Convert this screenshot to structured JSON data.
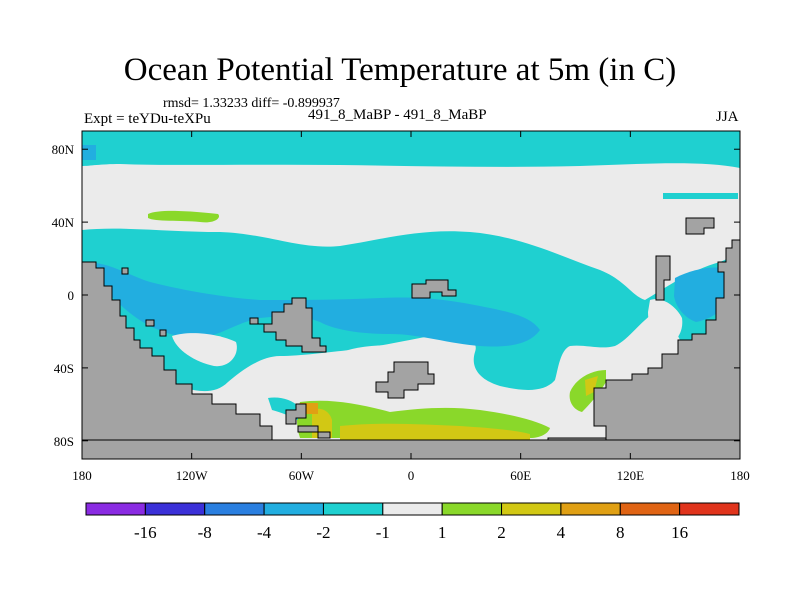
{
  "chart_data": {
    "type": "heatmap",
    "title": "Ocean Potential Temperature at 5m (in C)",
    "stats": "rmsd= 1.33233 diff= -0.899937",
    "left_label": "Expt = teYDu-teXPu",
    "center_label": "491_8_MaBP - 491_8_MaBP",
    "right_label": "JJA",
    "x_ticks": [
      "180",
      "120W",
      "60W",
      "0",
      "60E",
      "120E",
      "180"
    ],
    "x_tick_values": [
      -180,
      -120,
      -60,
      0,
      60,
      120,
      180
    ],
    "y_ticks": [
      "80N",
      "40N",
      "0",
      "40S",
      "80S"
    ],
    "y_tick_values": [
      80,
      40,
      0,
      -40,
      -80
    ],
    "xlim": [
      -180,
      180
    ],
    "ylim": [
      -90,
      90
    ],
    "colorbar": {
      "levels": [
        "-16",
        "-8",
        "-4",
        "-2",
        "-1",
        "1",
        "2",
        "4",
        "8",
        "16"
      ],
      "colors": [
        "#8a2be2",
        "#3b30d8",
        "#2a7fe0",
        "#22aee0",
        "#1fd0d0",
        "#ebebeb",
        "#8ad82a",
        "#d2c814",
        "#e0a014",
        "#e06414",
        "#e0341c"
      ]
    },
    "land_color": "#a3a3a3"
  }
}
